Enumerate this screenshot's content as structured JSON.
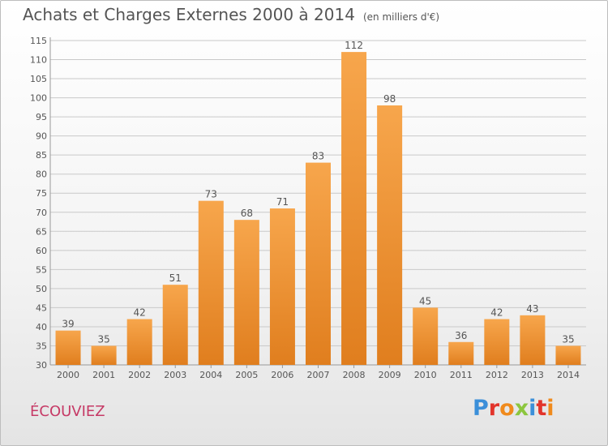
{
  "title": "Achats et Charges Externes 2000 à 2014",
  "subtitle": "(en milliers d'€)",
  "commune": "ÉCOUVIEZ",
  "logo": "Proxiti",
  "colors": {
    "bar_top": "#f7a64c",
    "bar_bottom": "#e07e1e",
    "grid": "#c9c9c9",
    "text": "#555555",
    "commune": "#c63a66",
    "logo_letters": [
      "#3b8fd9",
      "#e2342b",
      "#f08a1c",
      "#8cc63e",
      "#3b8fd9",
      "#e2342b",
      "#f08a1c"
    ]
  },
  "chart_data": {
    "type": "bar",
    "categories": [
      "2000",
      "2001",
      "2002",
      "2003",
      "2004",
      "2005",
      "2006",
      "2007",
      "2008",
      "2009",
      "2010",
      "2011",
      "2012",
      "2013",
      "2014"
    ],
    "values": [
      39,
      35,
      42,
      51,
      73,
      68,
      71,
      83,
      112,
      98,
      45,
      36,
      42,
      43,
      35
    ],
    "ylim": [
      30,
      115
    ],
    "yticks": [
      30,
      35,
      40,
      45,
      50,
      55,
      60,
      65,
      70,
      75,
      80,
      85,
      90,
      95,
      100,
      105,
      110,
      115
    ],
    "grid": true,
    "data_labels": true
  }
}
